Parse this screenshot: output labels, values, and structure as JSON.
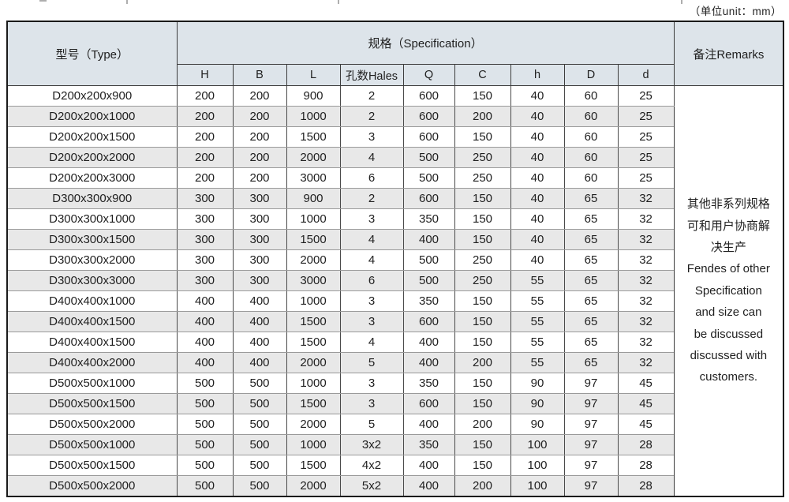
{
  "page": {
    "unit_label": "（单位unit：mm）"
  },
  "table": {
    "header": {
      "type_label": "型号（Type）",
      "spec_label": "规格（Specification）",
      "remarks_label": "备注Remarks",
      "spec_columns": [
        "H",
        "B",
        "L",
        "孔数Hales",
        "Q",
        "C",
        "h",
        "D",
        "d"
      ]
    },
    "rows": [
      [
        "D200x200x900",
        "200",
        "200",
        "900",
        "2",
        "600",
        "150",
        "40",
        "60",
        "25"
      ],
      [
        "D200x200x1000",
        "200",
        "200",
        "1000",
        "2",
        "600",
        "200",
        "40",
        "60",
        "25"
      ],
      [
        "D200x200x1500",
        "200",
        "200",
        "1500",
        "3",
        "600",
        "150",
        "40",
        "60",
        "25"
      ],
      [
        "D200x200x2000",
        "200",
        "200",
        "2000",
        "4",
        "500",
        "250",
        "40",
        "60",
        "25"
      ],
      [
        "D200x200x3000",
        "200",
        "200",
        "3000",
        "6",
        "500",
        "250",
        "40",
        "60",
        "25"
      ],
      [
        "D300x300x900",
        "300",
        "300",
        "900",
        "2",
        "600",
        "150",
        "40",
        "65",
        "32"
      ],
      [
        "D300x300x1000",
        "300",
        "300",
        "1000",
        "3",
        "350",
        "150",
        "40",
        "65",
        "32"
      ],
      [
        "D300x300x1500",
        "300",
        "300",
        "1500",
        "4",
        "400",
        "150",
        "40",
        "65",
        "32"
      ],
      [
        "D300x300x2000",
        "300",
        "300",
        "2000",
        "4",
        "500",
        "250",
        "40",
        "65",
        "32"
      ],
      [
        "D300x300x3000",
        "300",
        "300",
        "3000",
        "6",
        "500",
        "250",
        "55",
        "65",
        "32"
      ],
      [
        "D400x400x1000",
        "400",
        "400",
        "1000",
        "3",
        "350",
        "150",
        "55",
        "65",
        "32"
      ],
      [
        "D400x400x1500",
        "400",
        "400",
        "1500",
        "3",
        "600",
        "150",
        "55",
        "65",
        "32"
      ],
      [
        "D400x400x1500",
        "400",
        "400",
        "1500",
        "4",
        "400",
        "150",
        "55",
        "65",
        "32"
      ],
      [
        "D400x400x2000",
        "400",
        "400",
        "2000",
        "5",
        "400",
        "200",
        "55",
        "65",
        "32"
      ],
      [
        "D500x500x1000",
        "500",
        "500",
        "1000",
        "3",
        "350",
        "150",
        "90",
        "97",
        "45"
      ],
      [
        "D500x500x1500",
        "500",
        "500",
        "1500",
        "3",
        "600",
        "150",
        "90",
        "97",
        "45"
      ],
      [
        "D500x500x2000",
        "500",
        "500",
        "2000",
        "5",
        "400",
        "200",
        "90",
        "97",
        "45"
      ],
      [
        "D500x500x1000",
        "500",
        "500",
        "1000",
        "3x2",
        "350",
        "150",
        "100",
        "97",
        "28"
      ],
      [
        "D500x500x1500",
        "500",
        "500",
        "1500",
        "4x2",
        "400",
        "150",
        "100",
        "97",
        "28"
      ],
      [
        "D500x500x2000",
        "500",
        "500",
        "2000",
        "5x2",
        "400",
        "200",
        "100",
        "97",
        "28"
      ]
    ],
    "remarks_lines": [
      "其他非系列规格",
      "可和用户协商解",
      "决生产",
      "Fendes of other",
      "Specification",
      "and size can",
      "be discussed",
      "discussed with",
      "customers."
    ]
  },
  "colors": {
    "header_bg": "#dde4ea",
    "row_alt_bg": "#e8e8e8",
    "row_bg": "#ffffff",
    "border_dark": "#1a1a1a"
  }
}
